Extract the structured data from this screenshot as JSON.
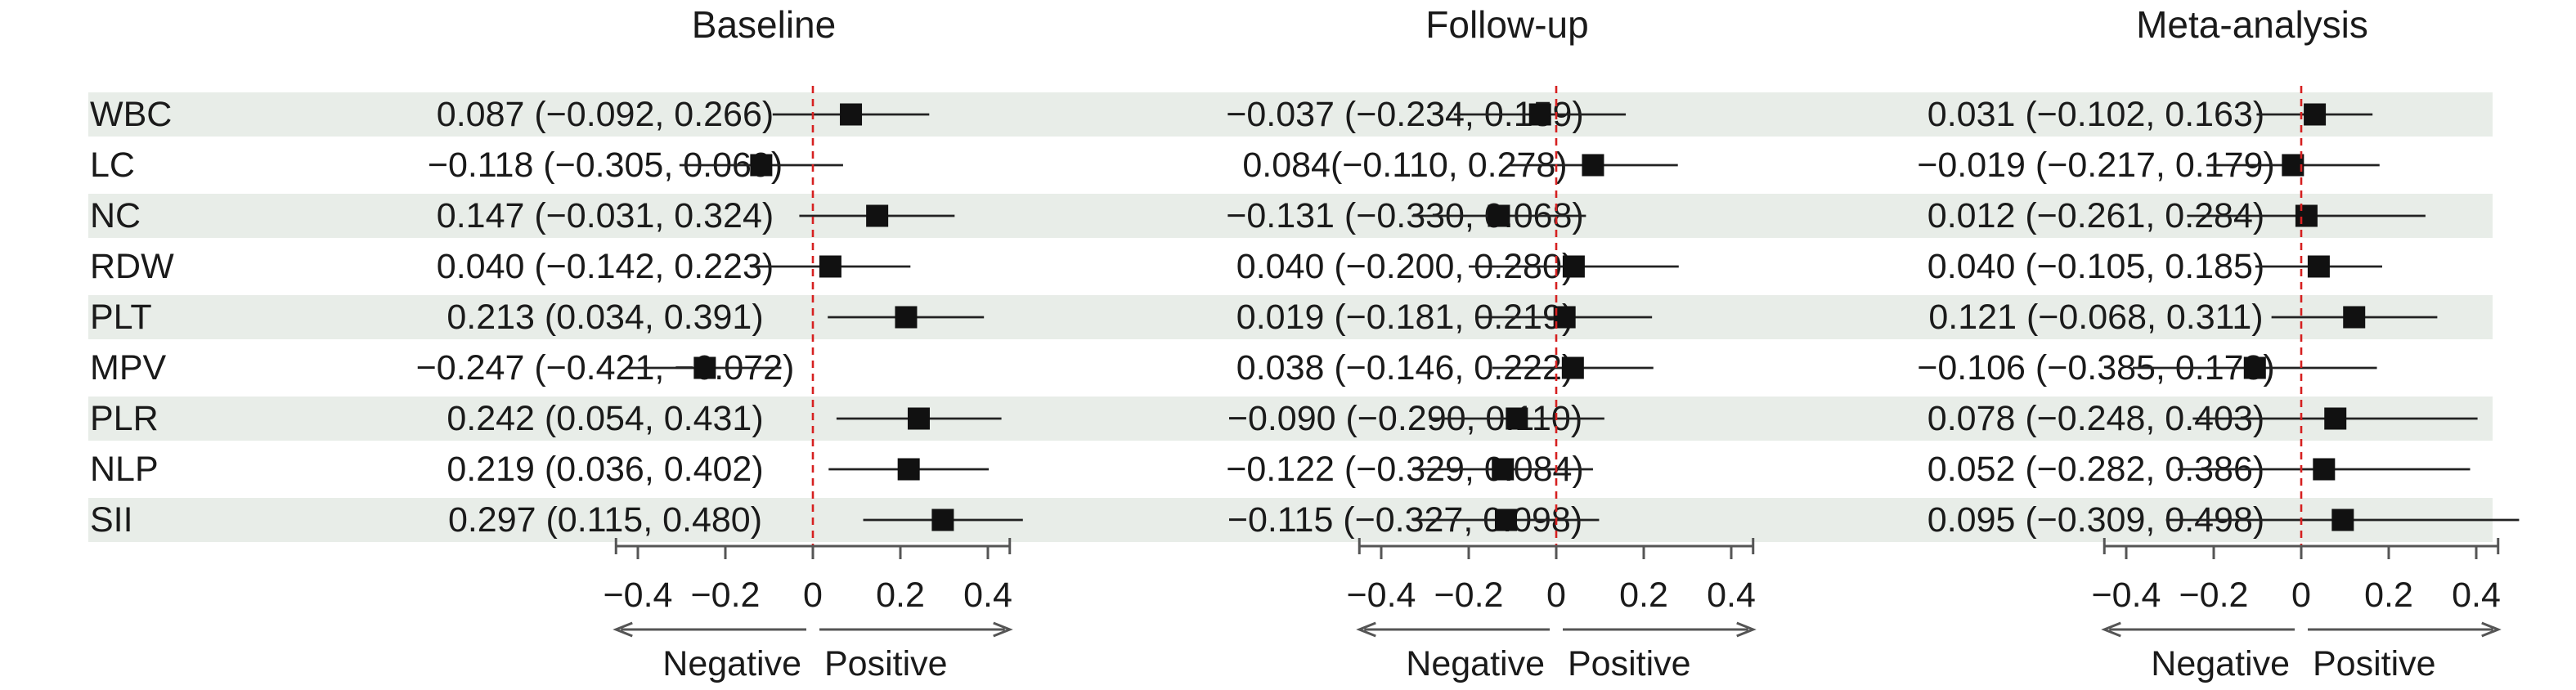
{
  "chart_data": {
    "type": "forest",
    "row_labels": [
      "WBC",
      "LC",
      "NC",
      "RDW",
      "PLT",
      "MPV",
      "PLR",
      "NLP",
      "SII"
    ],
    "x_ticks": [
      -0.4,
      -0.2,
      0,
      0.2,
      0.4
    ],
    "x_tick_labels": [
      "−0.4",
      "−0.2",
      "0",
      "0.2",
      "0.4"
    ],
    "xlim": [
      -0.45,
      0.45
    ],
    "reference_line": 0,
    "direction_labels": {
      "negative": "Negative",
      "positive": "Positive"
    },
    "row_shading": "alternating",
    "panels": [
      {
        "title": "Baseline",
        "estimates": [
          {
            "est": 0.087,
            "lo": -0.092,
            "hi": 0.266,
            "label": "0.087 (−0.092, 0.266)"
          },
          {
            "est": -0.118,
            "lo": -0.305,
            "hi": 0.069,
            "label": "−0.118 (−0.305, 0.069)"
          },
          {
            "est": 0.147,
            "lo": -0.031,
            "hi": 0.324,
            "label": "0.147 (−0.031, 0.324)"
          },
          {
            "est": 0.04,
            "lo": -0.142,
            "hi": 0.223,
            "label": "0.040 (−0.142, 0.223)"
          },
          {
            "est": 0.213,
            "lo": 0.034,
            "hi": 0.391,
            "label": "0.213 (0.034, 0.391)"
          },
          {
            "est": -0.247,
            "lo": -0.421,
            "hi": -0.072,
            "label": "−0.247 (−0.421, −0.072)"
          },
          {
            "est": 0.242,
            "lo": 0.054,
            "hi": 0.431,
            "label": "0.242 (0.054, 0.431)"
          },
          {
            "est": 0.219,
            "lo": 0.036,
            "hi": 0.402,
            "label": "0.219 (0.036, 0.402)"
          },
          {
            "est": 0.297,
            "lo": 0.115,
            "hi": 0.48,
            "label": "0.297 (0.115, 0.480)"
          }
        ]
      },
      {
        "title": "Follow-up",
        "estimates": [
          {
            "est": -0.037,
            "lo": -0.234,
            "hi": 0.159,
            "label": "−0.037 (−0.234, 0.159)"
          },
          {
            "est": 0.084,
            "lo": -0.11,
            "hi": 0.278,
            "label": "0.084(−0.110, 0.278)"
          },
          {
            "est": -0.131,
            "lo": -0.33,
            "hi": 0.068,
            "label": "−0.131 (−0.330, 0.068)"
          },
          {
            "est": 0.04,
            "lo": -0.2,
            "hi": 0.28,
            "label": "0.040 (−0.200, 0.280)"
          },
          {
            "est": 0.019,
            "lo": -0.181,
            "hi": 0.219,
            "label": "0.019 (−0.181, 0.219)"
          },
          {
            "est": 0.038,
            "lo": -0.146,
            "hi": 0.222,
            "label": "0.038 (−0.146, 0.222)"
          },
          {
            "est": -0.09,
            "lo": -0.29,
            "hi": 0.11,
            "label": "−0.090 (−0.290, 0.110)"
          },
          {
            "est": -0.122,
            "lo": -0.329,
            "hi": 0.084,
            "label": "−0.122 (−0.329, 0.084)"
          },
          {
            "est": -0.115,
            "lo": -0.327,
            "hi": 0.098,
            "label": "−0.115 (−0.327, 0.098)"
          }
        ]
      },
      {
        "title": "Meta-analysis",
        "estimates": [
          {
            "est": 0.031,
            "lo": -0.102,
            "hi": 0.163,
            "label": "0.031 (−0.102, 0.163)"
          },
          {
            "est": -0.019,
            "lo": -0.217,
            "hi": 0.179,
            "label": "−0.019 (−0.217, 0.179)"
          },
          {
            "est": 0.012,
            "lo": -0.261,
            "hi": 0.284,
            "label": "0.012 (−0.261, 0.284)"
          },
          {
            "est": 0.04,
            "lo": -0.105,
            "hi": 0.185,
            "label": "0.040 (−0.105, 0.185)"
          },
          {
            "est": 0.121,
            "lo": -0.068,
            "hi": 0.311,
            "label": "0.121 (−0.068, 0.311)"
          },
          {
            "est": -0.106,
            "lo": -0.385,
            "hi": 0.173,
            "label": "−0.106 (−0.385, 0.173)"
          },
          {
            "est": 0.078,
            "lo": -0.248,
            "hi": 0.403,
            "label": "0.078 (−0.248, 0.403)"
          },
          {
            "est": 0.052,
            "lo": -0.282,
            "hi": 0.386,
            "label": "0.052 (−0.282, 0.386)"
          },
          {
            "est": 0.095,
            "lo": -0.309,
            "hi": 0.498,
            "label": "0.095 (−0.309, 0.498)"
          }
        ]
      }
    ],
    "colors": {
      "row_shade": "#e8ede8",
      "ci_line": "#222222",
      "point": "#111111",
      "reference_line": "#d62020",
      "axis": "#555555"
    }
  }
}
